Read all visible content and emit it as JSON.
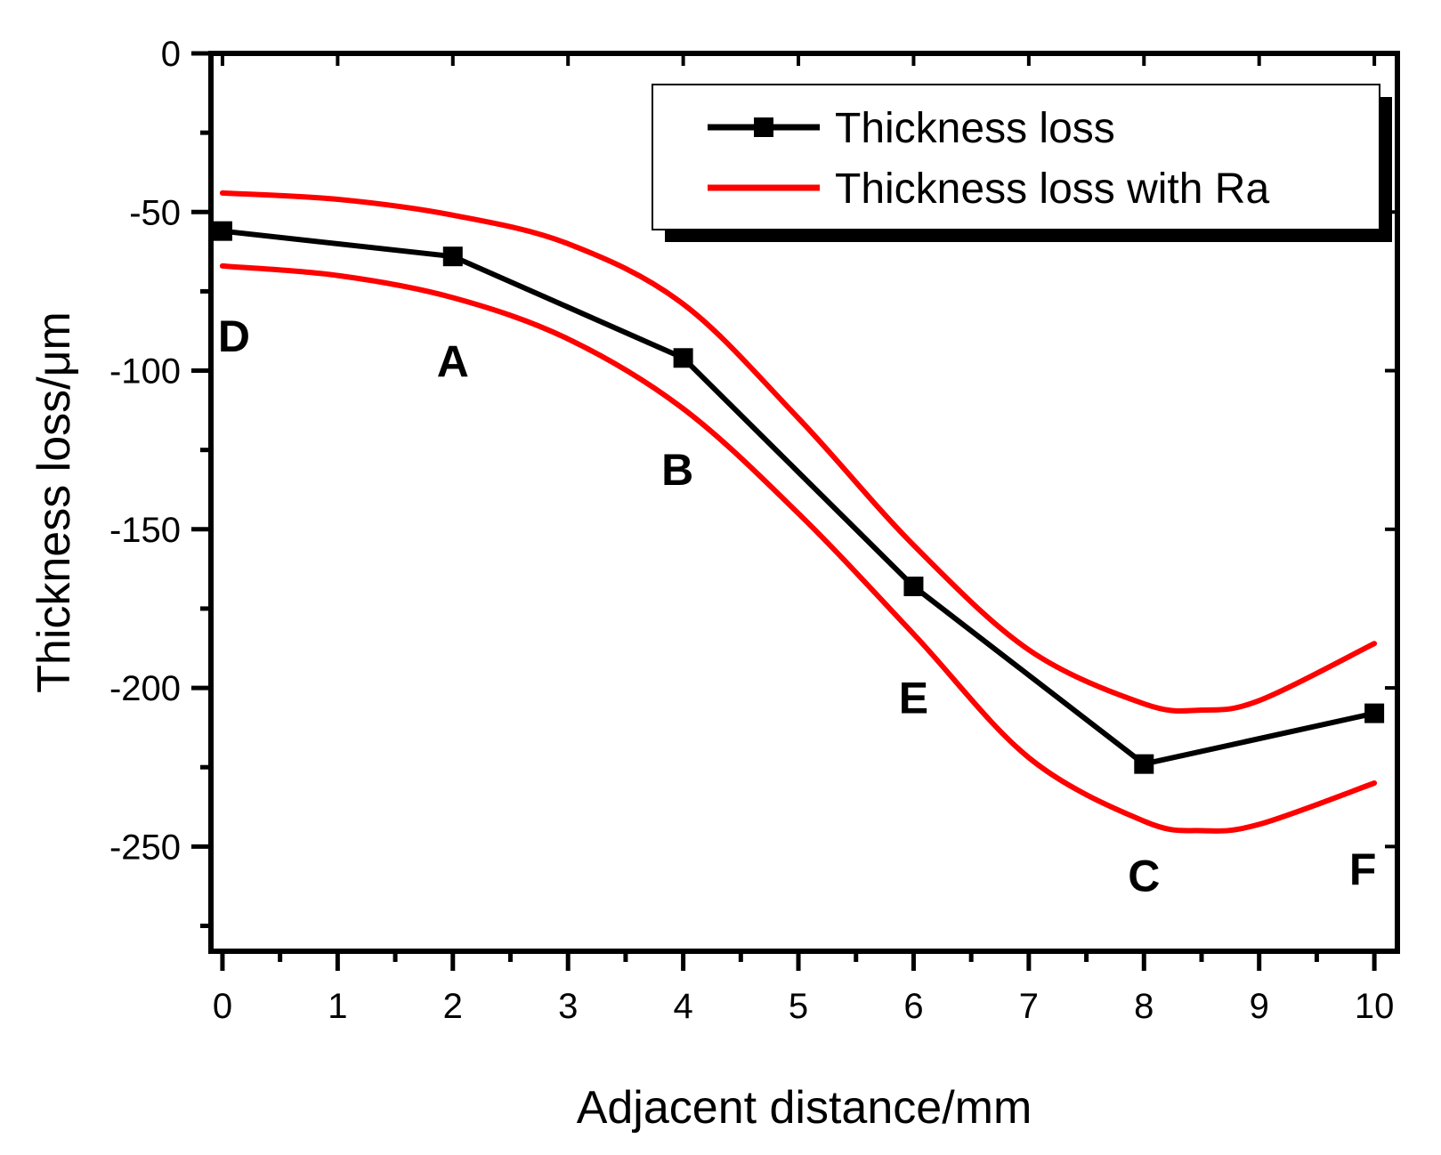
{
  "chart_data": {
    "type": "line",
    "xlabel": "Adjacent distance/mm",
    "ylabel": "Thickness loss/μm",
    "xlim": [
      -0.1,
      10.2
    ],
    "ylim": [
      -283,
      0
    ],
    "x_ticks": [
      0,
      1,
      2,
      3,
      4,
      5,
      6,
      7,
      8,
      9,
      10
    ],
    "y_ticks": [
      0,
      -50,
      -100,
      -150,
      -200,
      -250
    ],
    "grid": false,
    "legend_position": "top-right",
    "series": [
      {
        "name": "Thickness loss",
        "color": "#000000",
        "marker": "square",
        "x": [
          0,
          2,
          4,
          6,
          8,
          10
        ],
        "y": [
          -56,
          -64,
          -96,
          -168,
          -224,
          -208
        ]
      },
      {
        "name": "Thickness loss with Ra",
        "color": "#ff0000",
        "marker": "none",
        "x": [
          0,
          1,
          2,
          3,
          4,
          5,
          6,
          7,
          8,
          8.5,
          9,
          10
        ],
        "y": [
          -44,
          -46,
          -51,
          -60,
          -79,
          -115,
          -155,
          -188,
          -205,
          -207,
          -204,
          -186
        ]
      },
      {
        "name": "",
        "color": "#ff0000",
        "marker": "none",
        "x": [
          0,
          1,
          2,
          3,
          4,
          5,
          6,
          7,
          8,
          8.5,
          9,
          10
        ],
        "y": [
          -67,
          -70,
          -77,
          -90,
          -112,
          -145,
          -183,
          -222,
          -242,
          -245,
          -243,
          -230
        ]
      }
    ],
    "annotations": [
      {
        "text": "D",
        "x": 0.1,
        "y": -94
      },
      {
        "text": "A",
        "x": 2.0,
        "y": -102
      },
      {
        "text": "B",
        "x": 3.95,
        "y": -136
      },
      {
        "text": "E",
        "x": 6.0,
        "y": -208
      },
      {
        "text": "C",
        "x": 8.0,
        "y": -264
      },
      {
        "text": "F",
        "x": 9.9,
        "y": -262
      }
    ]
  }
}
